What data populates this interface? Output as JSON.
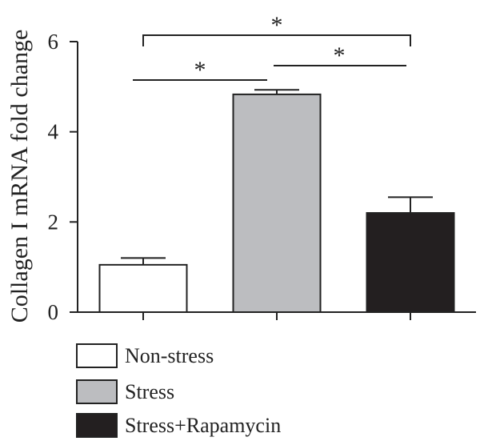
{
  "chart_data": {
    "type": "bar",
    "categories": [
      "Non-stress",
      "Stress",
      "Stress+Rapamycin"
    ],
    "values": [
      1.05,
      4.83,
      2.2
    ],
    "errors": [
      0.15,
      0.1,
      0.35
    ],
    "colors": [
      "#ffffff",
      "#bcbdc0",
      "#231f20"
    ],
    "title": "",
    "xlabel": "",
    "ylabel": "Collagen I mRNA fold change",
    "ylim": [
      0,
      6
    ],
    "yticks": [
      "0",
      "2",
      "4",
      "6"
    ],
    "grid": false,
    "legend": {
      "placement": "bottom-left",
      "entries": [
        "Non-stress",
        "Stress",
        "Stress+Rapamycin"
      ]
    },
    "significance": [
      {
        "pair": [
          "Non-stress",
          "Stress+Rapamycin"
        ],
        "label": "*",
        "style": "bracket"
      },
      {
        "pair": [
          "Non-stress",
          "Stress"
        ],
        "label": "*",
        "style": "line"
      },
      {
        "pair": [
          "Stress",
          "Stress+Rapamycin"
        ],
        "label": "*",
        "style": "line"
      }
    ]
  }
}
